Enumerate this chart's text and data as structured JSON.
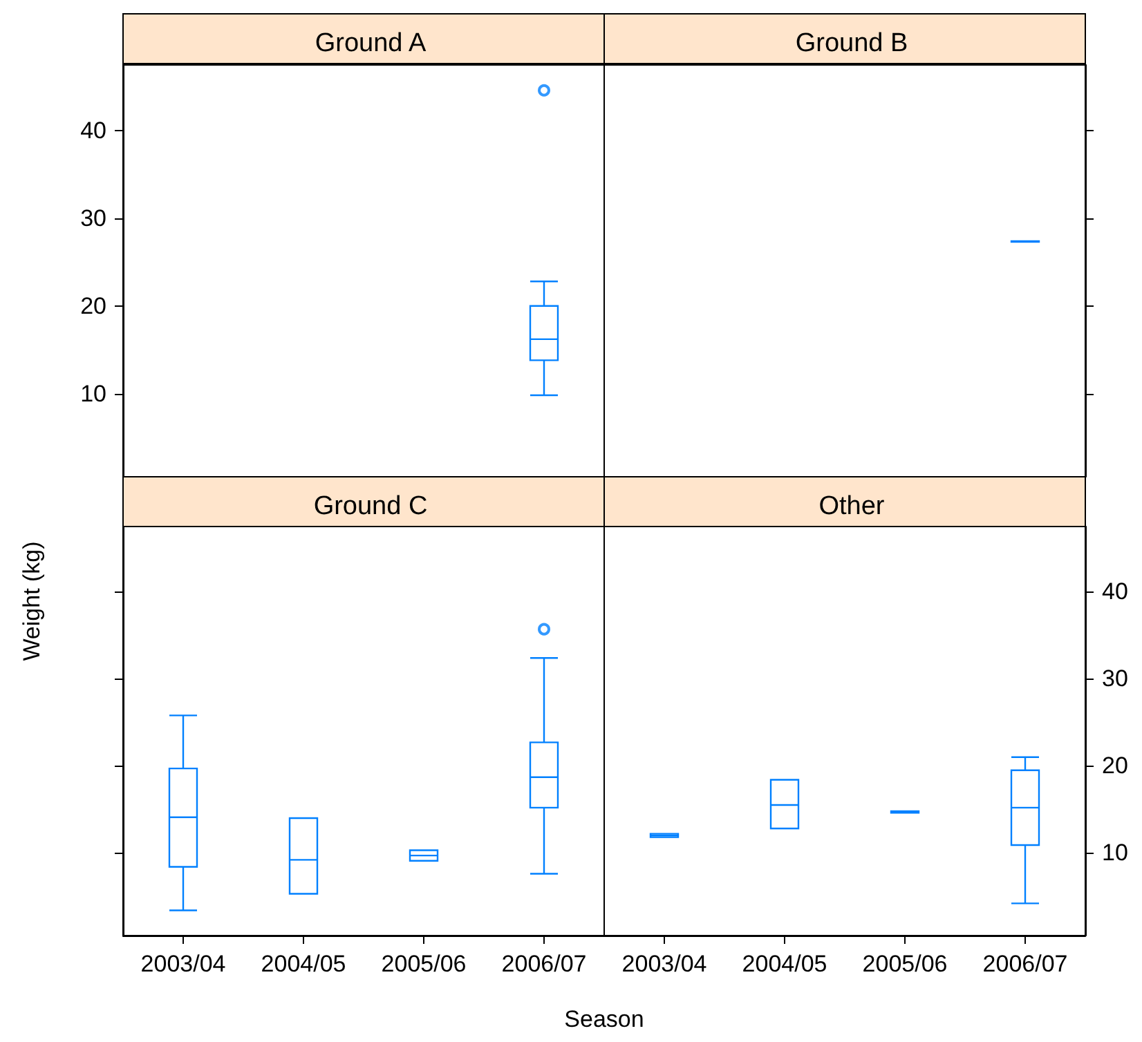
{
  "chart_data": [
    {
      "type": "box",
      "title": "Ground A",
      "ylabel": "Weight (kg)",
      "categories": [
        "2003/04",
        "2004/05",
        "2005/06",
        "2006/07"
      ],
      "ylim": [
        0.5,
        47.5
      ],
      "yticks": [
        10,
        20,
        30,
        40
      ],
      "tick_labels": "y",
      "grid": false,
      "series": [
        {
          "color": "#0080ff",
          "boxes": [
            null,
            null,
            null,
            {
              "low": 9.8,
              "q1": 13.8,
              "median": 16.2,
              "q3": 20,
              "high": 22.8,
              "outliers": [
                44.6
              ]
            }
          ]
        }
      ]
    },
    {
      "type": "box",
      "title": "Ground B",
      "categories": [
        "2003/04",
        "2004/05",
        "2005/06",
        "2006/07"
      ],
      "ylim": [
        0.5,
        47.5
      ],
      "yticks": [
        10,
        20,
        30,
        40
      ],
      "tick_labels": false,
      "grid": false,
      "series": [
        {
          "color": "#0080ff",
          "boxes": [
            null,
            null,
            null,
            {
              "low": 27.3,
              "q1": 27.3,
              "median": 27.3,
              "q3": 27.4,
              "high": 27.4
            }
          ]
        }
      ]
    },
    {
      "type": "box",
      "title": "Ground C",
      "xlabel": "Season",
      "categories": [
        "2003/04",
        "2004/05",
        "2005/06",
        "2006/07"
      ],
      "ylim": [
        0.5,
        47.5
      ],
      "yticks": [
        10,
        20,
        30,
        40
      ],
      "tick_labels": "x",
      "grid": false,
      "series": [
        {
          "color": "#0080ff",
          "boxes": [
            {
              "low": 3.4,
              "q1": 8.4,
              "median": 14.1,
              "q3": 19.7,
              "high": 25.8
            },
            {
              "low": 5.3,
              "q1": 5.3,
              "median": 9.2,
              "q3": 14,
              "high": 14
            },
            {
              "low": 9.1,
              "q1": 9.1,
              "median": 9.7,
              "q3": 10.3,
              "high": 10.3
            },
            {
              "low": 7.6,
              "q1": 15.2,
              "median": 18.7,
              "q3": 22.7,
              "high": 32.4,
              "outliers": [
                35.7
              ]
            }
          ]
        }
      ]
    },
    {
      "type": "box",
      "title": "Other",
      "categories": [
        "2003/04",
        "2004/05",
        "2005/06",
        "2006/07"
      ],
      "ylim": [
        0.5,
        47.5
      ],
      "yticks": [
        10,
        20,
        30,
        40
      ],
      "grid": false,
      "series": [
        {
          "color": "#0080ff",
          "boxes": [
            {
              "low": 11.8,
              "q1": 11.8,
              "median": 12,
              "q3": 12.2,
              "high": 12.2
            },
            {
              "low": 12.8,
              "q1": 12.8,
              "median": 15.5,
              "q3": 18.4,
              "high": 18.4
            },
            {
              "low": 14.6,
              "q1": 14.6,
              "median": 14.7,
              "q3": 14.8,
              "high": 14.8
            },
            {
              "low": 4.2,
              "q1": 10.9,
              "median": 15.2,
              "q3": 19.5,
              "high": 21
            }
          ]
        }
      ]
    }
  ]
}
